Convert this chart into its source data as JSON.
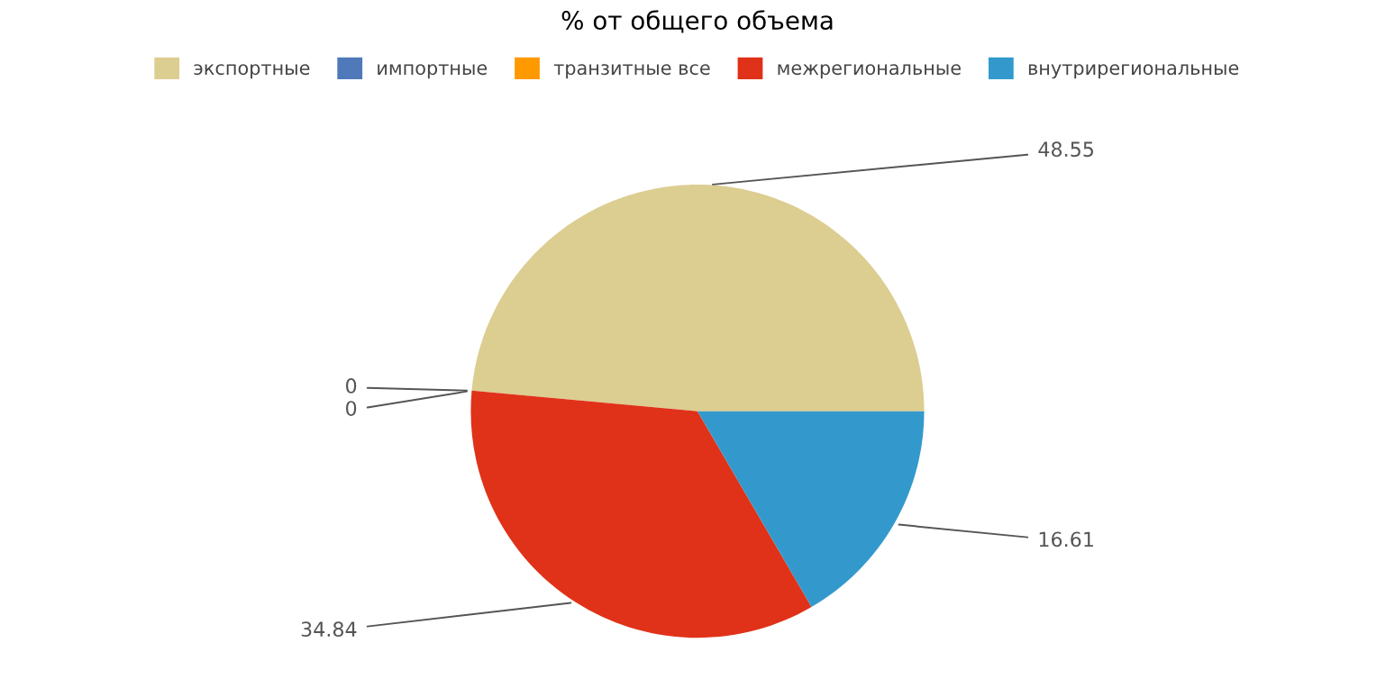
{
  "chart_data": {
    "type": "pie",
    "title": "% от общего объема",
    "categories": [
      "экспортные",
      "импортные",
      "транзитные все",
      "межрегиональные",
      "внутрирегиональные"
    ],
    "values": [
      48.55,
      0,
      0,
      34.84,
      16.61
    ],
    "colors": [
      "#dccd91",
      "#4f79b9",
      "#ff9900",
      "#e03218",
      "#3399cc"
    ],
    "value_labels": [
      "48.55",
      "0",
      "0",
      "34.84",
      "16.61"
    ],
    "legend": "top"
  }
}
